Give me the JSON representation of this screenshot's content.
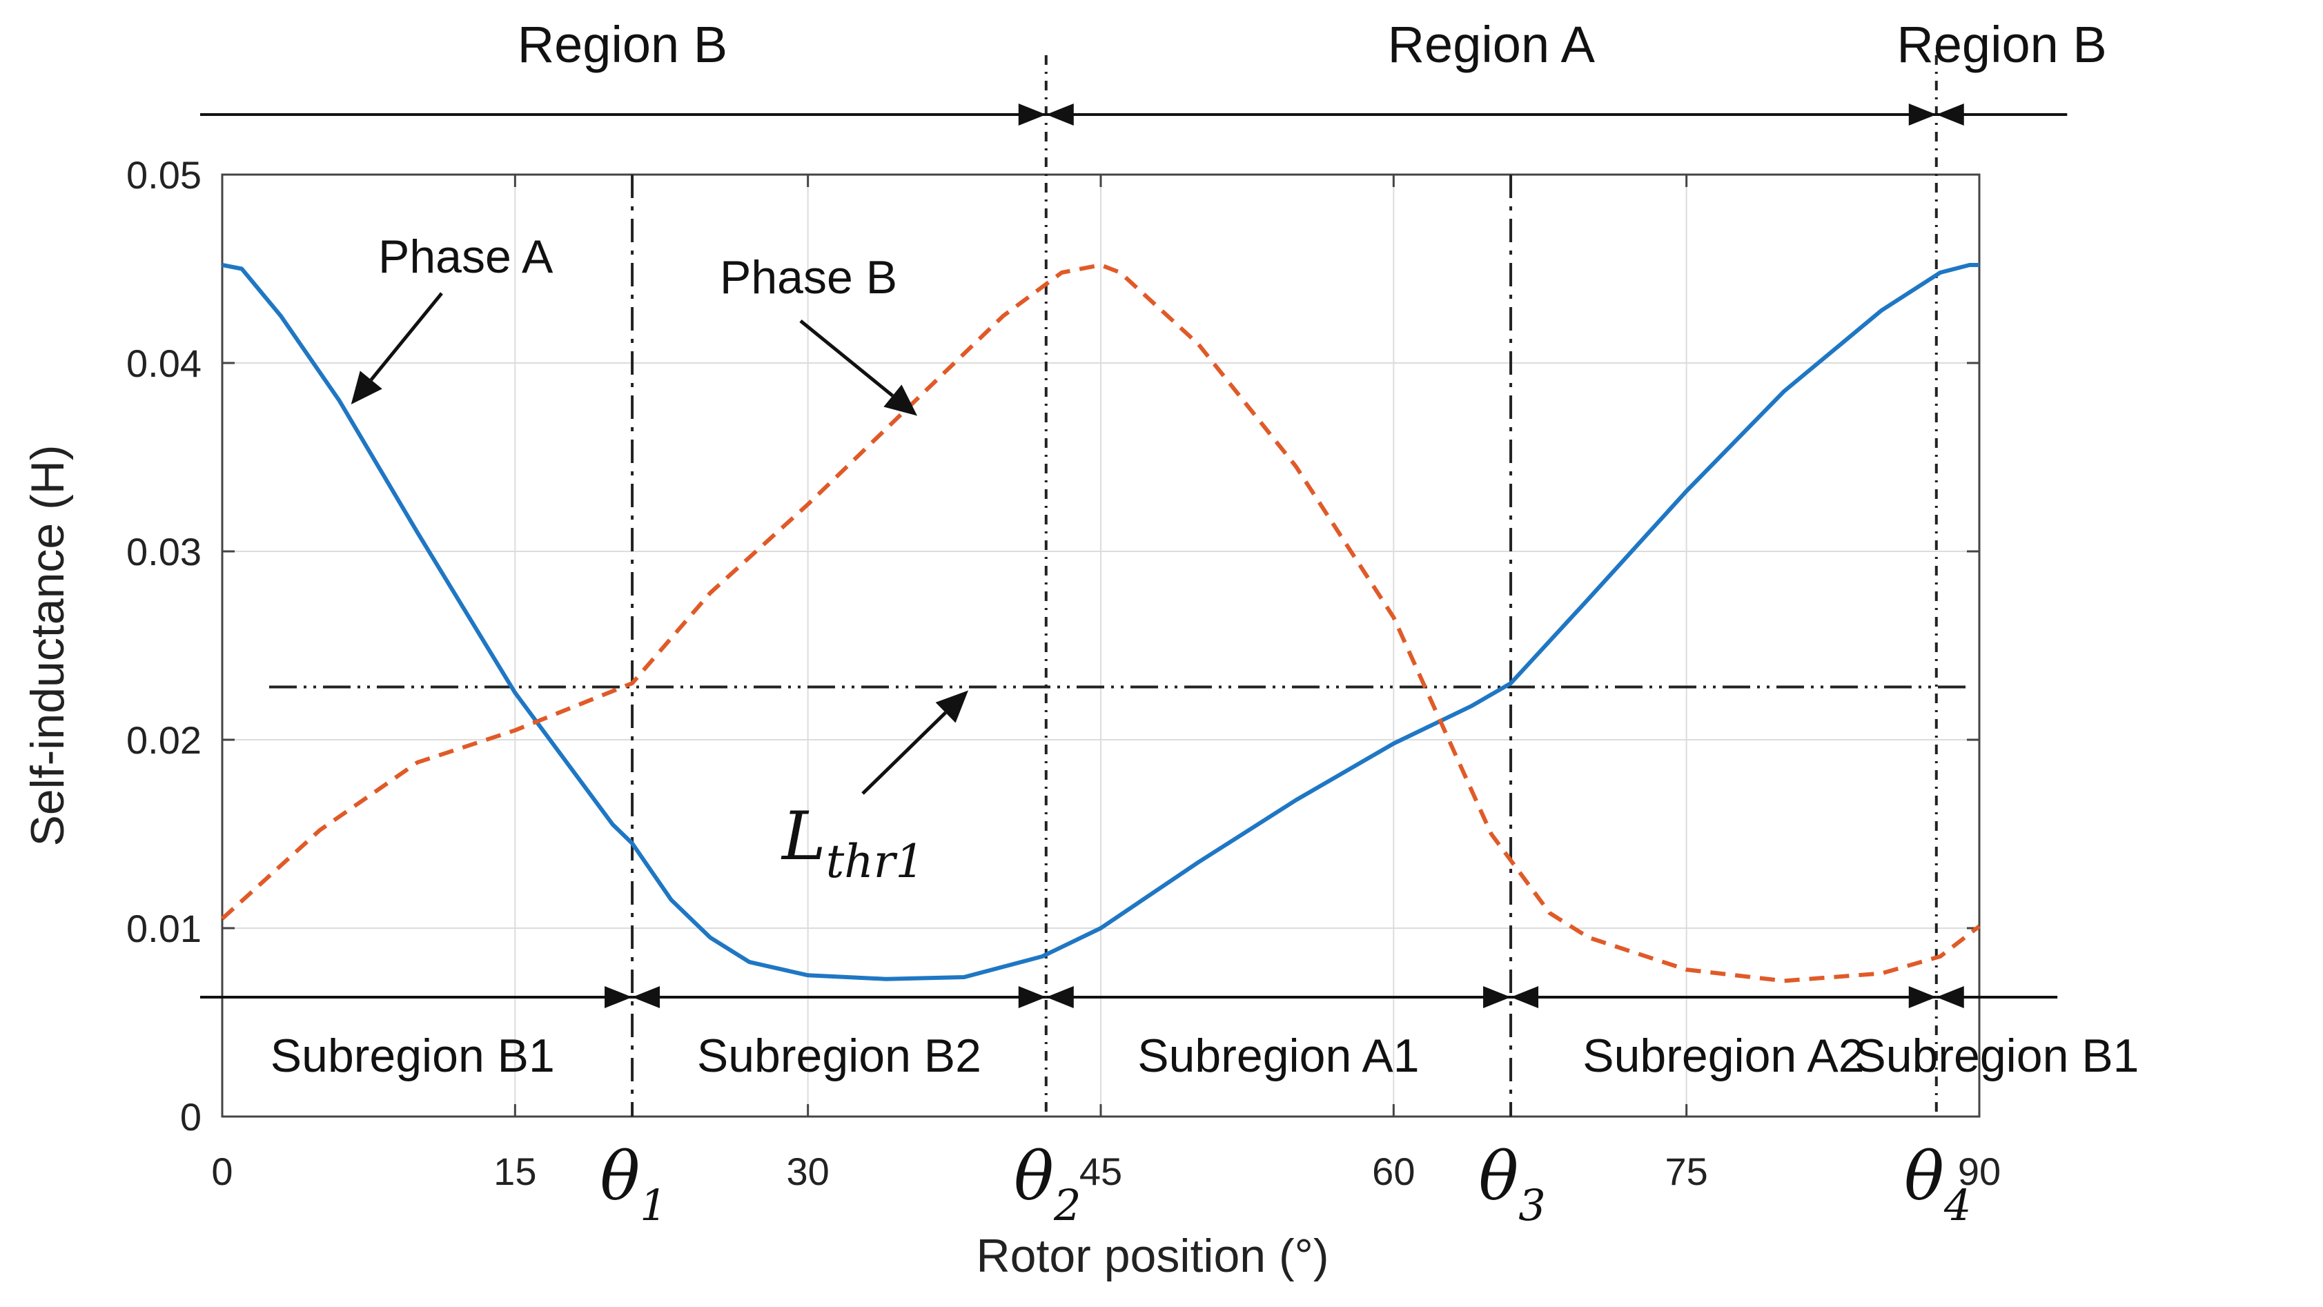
{
  "chart_data": {
    "type": "line",
    "xlabel": "Rotor position (°)",
    "ylabel": "Self-inductance (H)",
    "xlim": [
      0,
      90
    ],
    "ylim": [
      0,
      0.05
    ],
    "grid": true,
    "x_ticks": [
      {
        "value": 0,
        "label": "0"
      },
      {
        "value": 15,
        "label": "15"
      },
      {
        "value": 30,
        "label": "30"
      },
      {
        "value": 45,
        "label": "45"
      },
      {
        "value": 60,
        "label": "60"
      },
      {
        "value": 75,
        "label": "75"
      },
      {
        "value": 90,
        "label": "90"
      }
    ],
    "y_ticks": [
      {
        "value": 0,
        "label": "0"
      },
      {
        "value": 0.01,
        "label": "0.01"
      },
      {
        "value": 0.02,
        "label": "0.02"
      },
      {
        "value": 0.03,
        "label": "0.03"
      },
      {
        "value": 0.04,
        "label": "0.04"
      },
      {
        "value": 0.05,
        "label": "0.05"
      }
    ],
    "series": [
      {
        "name": "Phase A",
        "color": "#1f77c4",
        "style": "solid",
        "x": [
          0,
          1,
          3,
          6,
          10,
          15,
          20,
          21,
          23,
          25,
          27,
          30,
          34,
          38,
          42,
          45,
          50,
          55,
          60,
          64,
          66,
          70,
          75,
          80,
          85,
          88,
          89.5,
          90
        ],
        "y": [
          0.0452,
          0.045,
          0.0425,
          0.038,
          0.031,
          0.0225,
          0.0155,
          0.0145,
          0.0115,
          0.0095,
          0.0082,
          0.0075,
          0.0073,
          0.0074,
          0.0085,
          0.01,
          0.0135,
          0.0168,
          0.0198,
          0.0218,
          0.023,
          0.0275,
          0.0332,
          0.0385,
          0.0428,
          0.0448,
          0.0452,
          0.0452
        ]
      },
      {
        "name": "Phase B",
        "color": "#e05a28",
        "style": "dashed",
        "x": [
          0,
          5,
          10,
          15,
          21,
          25,
          30,
          35,
          40,
          43,
          45,
          46,
          50,
          55,
          60,
          65,
          68,
          70,
          75,
          80,
          85,
          88,
          90
        ],
        "y": [
          0.0105,
          0.0152,
          0.0188,
          0.0205,
          0.023,
          0.0278,
          0.0325,
          0.0375,
          0.0425,
          0.0448,
          0.0452,
          0.0448,
          0.041,
          0.0345,
          0.0265,
          0.015,
          0.0108,
          0.0095,
          0.0078,
          0.0072,
          0.0076,
          0.0085,
          0.0101
        ]
      }
    ],
    "threshold": {
      "label": "L",
      "subscript": "thr1",
      "value": 0.0228
    },
    "vertical_markers": [
      {
        "label": "θ",
        "subscript": "1",
        "x": 21
      },
      {
        "label": "θ",
        "subscript": "2",
        "x": 42.2
      },
      {
        "label": "θ",
        "subscript": "3",
        "x": 66
      },
      {
        "label": "θ",
        "subscript": "4",
        "x": 87.8
      }
    ],
    "regions": [
      {
        "label": "Region B",
        "from": -1.2,
        "to": 42.2
      },
      {
        "label": "Region A",
        "from": 42.2,
        "to": 87.8
      },
      {
        "label": "Region B",
        "from": 87.8,
        "to": 94.5
      }
    ],
    "subregions": [
      {
        "label": "Subregion B1",
        "from": -2,
        "to": 21
      },
      {
        "label": "Subregion B2",
        "from": 21,
        "to": 42.2
      },
      {
        "label": "Subregion A1",
        "from": 42.2,
        "to": 66
      },
      {
        "label": "Subregion A2",
        "from": 66,
        "to": 87.8
      },
      {
        "label": "Subregion B1",
        "from": 87.8,
        "to": 94
      }
    ],
    "annotations": [
      {
        "text": "Phase A",
        "target_series": "Phase A",
        "target_x": 6.6,
        "target_y": 0.0378
      },
      {
        "text": "Phase B",
        "target_series": "Phase B",
        "target_x": 35.6,
        "target_y": 0.0372
      }
    ]
  }
}
